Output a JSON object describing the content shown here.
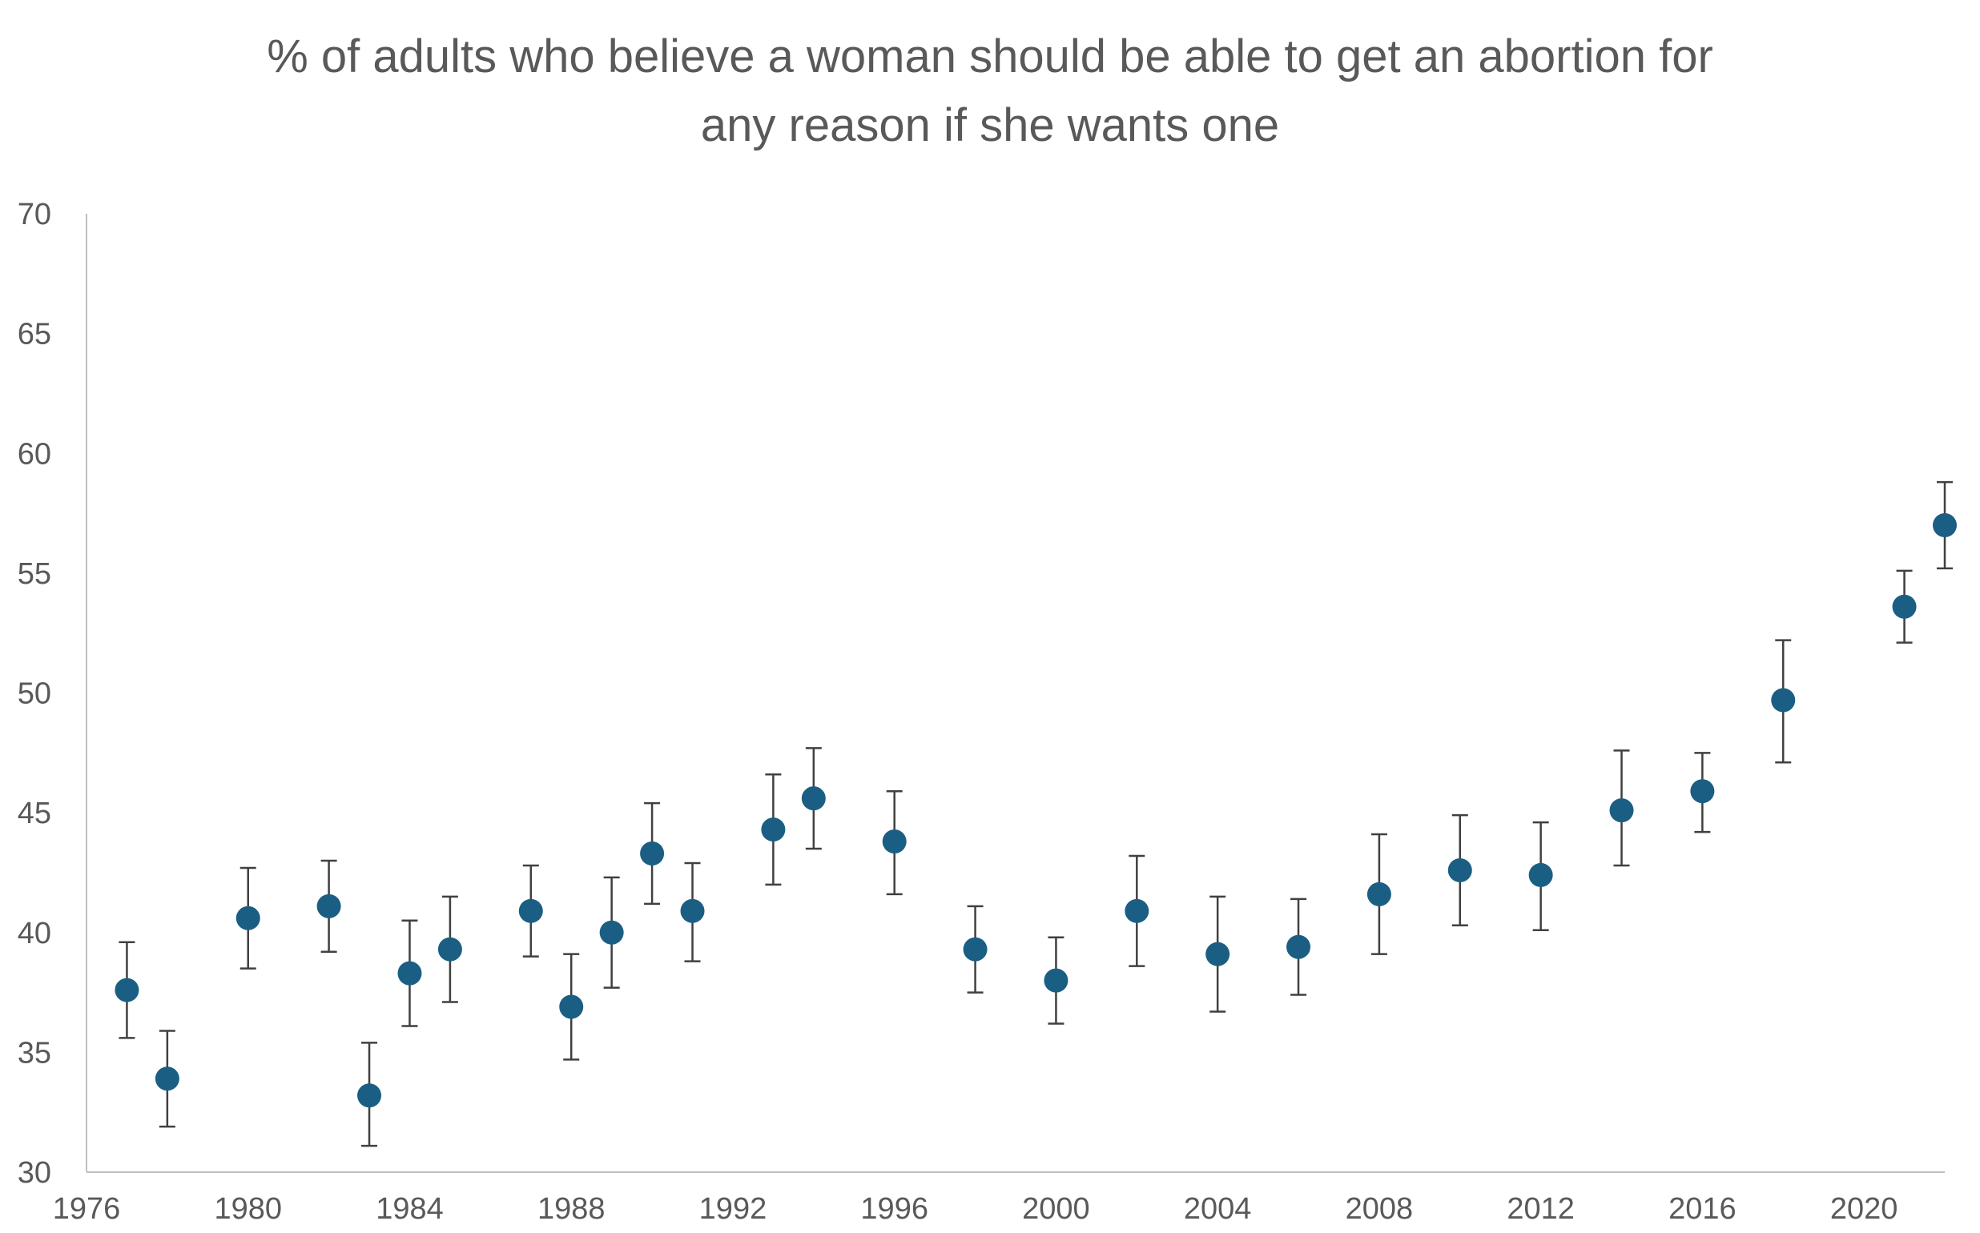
{
  "chart_data": {
    "type": "scatter",
    "title": "% of adults who believe a woman should be able to get an abortion for any reason if she wants one",
    "title_lines": [
      "% of adults who believe a woman should be able to get an abortion for",
      "any reason if she wants one"
    ],
    "xlabel": "",
    "ylabel": "",
    "xlim": [
      1976,
      2022
    ],
    "ylim": [
      30,
      70
    ],
    "x_ticks": [
      1976,
      1980,
      1984,
      1988,
      1992,
      1996,
      2000,
      2004,
      2008,
      2012,
      2016,
      2020
    ],
    "y_ticks": [
      30,
      35,
      40,
      45,
      50,
      55,
      60,
      65,
      70
    ],
    "grid": false,
    "legend": "none",
    "marker_color": "#1B5E83",
    "error_bar_color": "#404040",
    "axis_color": "#BFBFBF",
    "series": [
      {
        "points": [
          {
            "x": 1977,
            "y": 37.6,
            "low": 35.6,
            "high": 39.6
          },
          {
            "x": 1978,
            "y": 33.9,
            "low": 31.9,
            "high": 35.9
          },
          {
            "x": 1980,
            "y": 40.6,
            "low": 38.5,
            "high": 42.7
          },
          {
            "x": 1982,
            "y": 41.1,
            "low": 39.2,
            "high": 43.0
          },
          {
            "x": 1983,
            "y": 33.2,
            "low": 31.1,
            "high": 35.4
          },
          {
            "x": 1984,
            "y": 38.3,
            "low": 36.1,
            "high": 40.5
          },
          {
            "x": 1985,
            "y": 39.3,
            "low": 37.1,
            "high": 41.5
          },
          {
            "x": 1987,
            "y": 40.9,
            "low": 39.0,
            "high": 42.8
          },
          {
            "x": 1988,
            "y": 36.9,
            "low": 34.7,
            "high": 39.1
          },
          {
            "x": 1989,
            "y": 40.0,
            "low": 37.7,
            "high": 42.3
          },
          {
            "x": 1990,
            "y": 43.3,
            "low": 41.2,
            "high": 45.4
          },
          {
            "x": 1991,
            "y": 40.9,
            "low": 38.8,
            "high": 42.9
          },
          {
            "x": 1993,
            "y": 44.3,
            "low": 42.0,
            "high": 46.6
          },
          {
            "x": 1994,
            "y": 45.6,
            "low": 43.5,
            "high": 47.7
          },
          {
            "x": 1996,
            "y": 43.8,
            "low": 41.6,
            "high": 45.9
          },
          {
            "x": 1998,
            "y": 39.3,
            "low": 37.5,
            "high": 41.1
          },
          {
            "x": 2000,
            "y": 38.0,
            "low": 36.2,
            "high": 39.8
          },
          {
            "x": 2002,
            "y": 40.9,
            "low": 38.6,
            "high": 43.2
          },
          {
            "x": 2004,
            "y": 39.1,
            "low": 36.7,
            "high": 41.5
          },
          {
            "x": 2006,
            "y": 39.4,
            "low": 37.4,
            "high": 41.4
          },
          {
            "x": 2008,
            "y": 41.6,
            "low": 39.1,
            "high": 44.1
          },
          {
            "x": 2010,
            "y": 42.6,
            "low": 40.3,
            "high": 44.9
          },
          {
            "x": 2012,
            "y": 42.4,
            "low": 40.1,
            "high": 44.6
          },
          {
            "x": 2014,
            "y": 45.1,
            "low": 42.8,
            "high": 47.6
          },
          {
            "x": 2016,
            "y": 45.9,
            "low": 44.2,
            "high": 47.5
          },
          {
            "x": 2018,
            "y": 49.7,
            "low": 47.1,
            "high": 52.2
          },
          {
            "x": 2021,
            "y": 53.6,
            "low": 52.1,
            "high": 55.1
          },
          {
            "x": 2022,
            "y": 57.0,
            "low": 55.2,
            "high": 58.8
          }
        ]
      }
    ]
  }
}
